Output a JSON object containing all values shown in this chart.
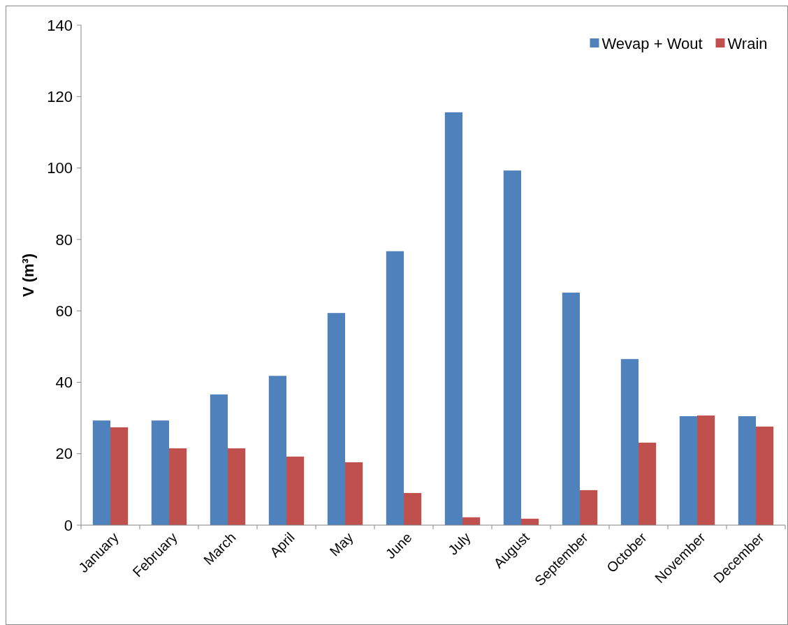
{
  "chart_data": {
    "type": "bar",
    "ylabel": "V (m³)",
    "categories": [
      "January",
      "February",
      "March",
      "April",
      "May",
      "June",
      "July",
      "August",
      "September",
      "October",
      "November",
      "December"
    ],
    "series": [
      {
        "name": "Wevap + Wout",
        "color": "#4f81bd",
        "values": [
          29.3,
          29.3,
          36.6,
          41.8,
          59.4,
          76.7,
          115.6,
          99.3,
          65.1,
          46.5,
          30.5,
          30.5
        ]
      },
      {
        "name": "Wrain",
        "color": "#c0504d",
        "values": [
          27.4,
          21.5,
          21.5,
          19.2,
          17.6,
          9.0,
          2.2,
          1.8,
          9.8,
          23.1,
          30.7,
          27.6
        ]
      }
    ],
    "ylim": [
      0,
      140
    ],
    "yticks": [
      0,
      20,
      40,
      60,
      80,
      100,
      120,
      140
    ],
    "grid": false,
    "legend": "top right"
  }
}
